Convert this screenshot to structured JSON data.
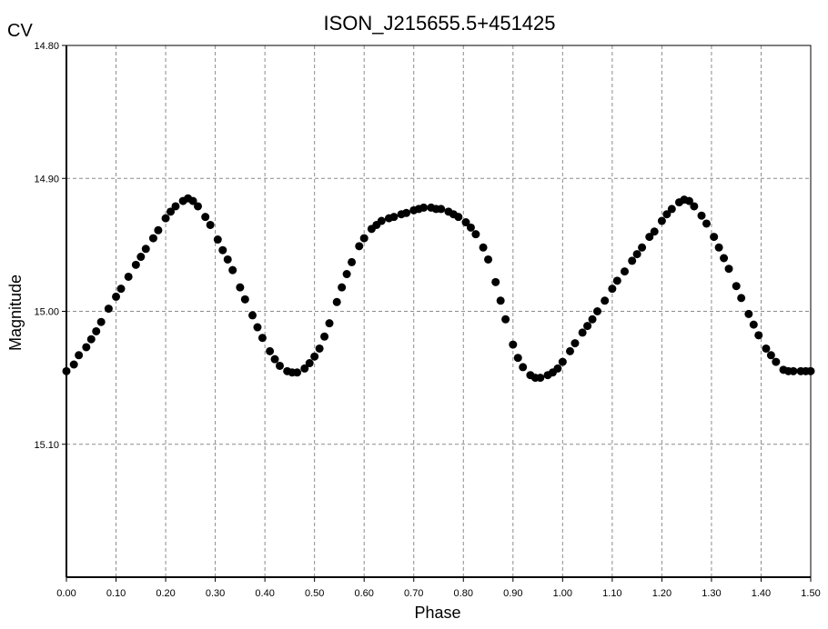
{
  "window": {
    "corner_label": "CV"
  },
  "chart_data": {
    "type": "scatter",
    "title": "ISON_J215655.5+451425",
    "xlabel": "Phase",
    "ylabel": "Magnitude",
    "xlim": [
      0.0,
      1.5
    ],
    "ylim": [
      14.8,
      15.2
    ],
    "y_inverted": true,
    "grid": true,
    "grid_style": "dashed",
    "x_ticks": [
      0.0,
      0.1,
      0.2,
      0.3,
      0.4,
      0.5,
      0.6,
      0.7,
      0.8,
      0.9,
      1.0,
      1.1,
      1.2,
      1.3,
      1.4,
      1.5
    ],
    "x_tick_labels": [
      "0.00",
      "0.10",
      "0.20",
      "0.30",
      "0.40",
      "0.50",
      "0.60",
      "0.70",
      "0.80",
      "0.90",
      "1.00",
      "1.10",
      "1.20",
      "1.30",
      "1.40",
      "1.50"
    ],
    "y_ticks": [
      14.8,
      14.9,
      15.0,
      15.1
    ],
    "y_tick_labels": [
      "14.80",
      "14.90",
      "15.00",
      "15.10"
    ],
    "marker_color": "#000000",
    "series": [
      {
        "x": [
          0.0,
          0.015,
          0.025,
          0.04,
          0.05,
          0.06,
          0.07,
          0.085,
          0.1,
          0.11,
          0.125,
          0.14,
          0.15,
          0.16,
          0.175,
          0.185,
          0.2,
          0.21,
          0.22,
          0.235,
          0.245,
          0.255,
          0.265,
          0.28,
          0.29,
          0.305,
          0.315,
          0.325,
          0.335,
          0.35,
          0.36,
          0.375,
          0.385,
          0.395,
          0.41,
          0.42,
          0.43,
          0.445,
          0.455,
          0.465,
          0.48,
          0.49,
          0.5,
          0.51,
          0.52,
          0.53,
          0.545,
          0.555,
          0.565,
          0.575,
          0.59,
          0.6,
          0.615,
          0.625,
          0.635,
          0.65,
          0.66,
          0.675,
          0.685,
          0.7,
          0.71,
          0.72,
          0.735,
          0.745,
          0.755,
          0.77,
          0.78,
          0.79,
          0.805,
          0.815,
          0.825,
          0.84,
          0.85,
          0.865,
          0.875,
          0.885,
          0.9,
          0.91,
          0.92,
          0.935,
          0.945,
          0.955,
          0.97,
          0.98,
          0.99,
          1.0,
          1.015,
          1.025,
          1.04,
          1.05,
          1.06,
          1.07,
          1.085,
          1.1,
          1.11,
          1.125,
          1.14,
          1.15,
          1.16,
          1.175,
          1.185,
          1.2,
          1.21,
          1.22,
          1.235,
          1.245,
          1.255,
          1.265,
          1.28,
          1.29,
          1.305,
          1.315,
          1.325,
          1.335,
          1.35,
          1.36,
          1.375,
          1.385,
          1.395,
          1.41,
          1.42,
          1.43,
          1.445,
          1.455,
          1.465,
          1.48,
          1.49,
          1.5
        ],
        "y": [
          15.045,
          15.04,
          15.033,
          15.027,
          15.021,
          15.015,
          15.008,
          14.998,
          14.989,
          14.983,
          14.974,
          14.965,
          14.959,
          14.953,
          14.945,
          14.939,
          14.93,
          14.925,
          14.921,
          14.917,
          14.915,
          14.917,
          14.921,
          14.929,
          14.935,
          14.946,
          14.954,
          14.961,
          14.969,
          14.982,
          14.991,
          15.003,
          15.012,
          15.02,
          15.03,
          15.036,
          15.041,
          15.045,
          15.046,
          15.046,
          15.043,
          15.039,
          15.034,
          15.028,
          15.019,
          15.009,
          14.993,
          14.982,
          14.972,
          14.963,
          14.951,
          14.945,
          14.938,
          14.935,
          14.932,
          14.93,
          14.929,
          14.927,
          14.926,
          14.924,
          14.923,
          14.922,
          14.922,
          14.923,
          14.923,
          14.925,
          14.927,
          14.929,
          14.933,
          14.937,
          14.942,
          14.952,
          14.961,
          14.978,
          14.992,
          15.006,
          15.025,
          15.035,
          15.042,
          15.048,
          15.05,
          15.05,
          15.048,
          15.046,
          15.043,
          15.038,
          15.03,
          15.024,
          15.016,
          15.011,
          15.006,
          15.0,
          14.992,
          14.983,
          14.977,
          14.97,
          14.962,
          14.957,
          14.952,
          14.944,
          14.94,
          14.932,
          14.927,
          14.923,
          14.918,
          14.916,
          14.917,
          14.921,
          14.928,
          14.934,
          14.944,
          14.952,
          14.96,
          14.968,
          14.981,
          14.99,
          15.002,
          15.01,
          15.018,
          15.028,
          15.033,
          15.038,
          15.044,
          15.045,
          15.045,
          15.045,
          15.045,
          15.045
        ]
      }
    ]
  }
}
